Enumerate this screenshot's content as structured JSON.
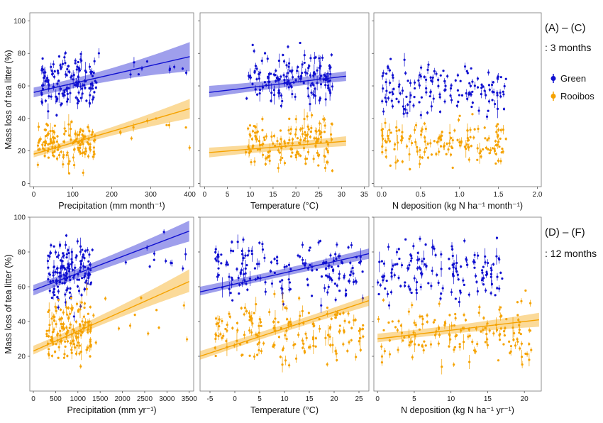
{
  "colors": {
    "green": "#1010d0",
    "rooibos": "#f5a200"
  },
  "legend": {
    "header": "(A) – (C)",
    "subheader": ": 3 months",
    "items": [
      {
        "label": "Green",
        "color": "#1010d0"
      },
      {
        "label": "Rooibos",
        "color": "#f5a200"
      }
    ],
    "header2": "(D) – (F)",
    "subheader2": ": 12 months"
  },
  "chart_data": [
    {
      "type": "scatter",
      "id": "A",
      "xlabel": "Precipitation (mm month⁻¹)",
      "ylabel": "Mass loss of tea litter (%)",
      "xlim": [
        -10,
        410
      ],
      "ylim": [
        -2,
        105
      ],
      "xticks": [
        0,
        100,
        200,
        300,
        400
      ],
      "yticks": [
        0,
        20,
        40,
        60,
        80,
        100
      ],
      "series": [
        {
          "name": "Green",
          "fit": {
            "x": [
              0,
              400
            ],
            "y": [
              56,
              78
            ],
            "band_start": [
              53,
              59
            ],
            "band_end": [
              69,
              87
            ]
          },
          "clusters": [
            {
              "x": [
                20,
                160
              ],
              "y": [
                35,
                90
              ],
              "n": 140
            },
            {
              "x": [
                160,
                400
              ],
              "y": [
                55,
                85
              ],
              "n": 12
            }
          ]
        },
        {
          "name": "Rooibos",
          "fit": {
            "x": [
              0,
              400
            ],
            "y": [
              18,
              46
            ],
            "band_start": [
              16,
              20
            ],
            "band_end": [
              40,
              52
            ]
          },
          "clusters": [
            {
              "x": [
                10,
                160
              ],
              "y": [
                5,
                45
              ],
              "n": 140
            },
            {
              "x": [
                160,
                400
              ],
              "y": [
                15,
                48
              ],
              "n": 10
            }
          ]
        }
      ]
    },
    {
      "type": "scatter",
      "id": "B",
      "xlabel": "Temperature (°C)",
      "ylabel": "",
      "xlim": [
        -1,
        36
      ],
      "ylim": [
        -2,
        105
      ],
      "xticks": [
        0,
        5,
        10,
        15,
        20,
        25,
        30,
        35
      ],
      "yticks": [
        0,
        20,
        40,
        60,
        80,
        100
      ],
      "series": [
        {
          "name": "Green",
          "fit": {
            "x": [
              1,
              31
            ],
            "y": [
              56,
              66
            ],
            "band_start": [
              53,
              60
            ],
            "band_end": [
              63,
              69
            ]
          },
          "clusters": [
            {
              "x": [
                9,
                28
              ],
              "y": [
                38,
                90
              ],
              "n": 150
            }
          ]
        },
        {
          "name": "Rooibos",
          "fit": {
            "x": [
              1,
              31
            ],
            "y": [
              19,
              26
            ],
            "band_start": [
              16,
              22
            ],
            "band_end": [
              23,
              29
            ]
          },
          "clusters": [
            {
              "x": [
                9,
                28
              ],
              "y": [
                3,
                48
              ],
              "n": 150
            }
          ]
        }
      ]
    },
    {
      "type": "scatter",
      "id": "C",
      "xlabel": "N deposition (kg N ha⁻¹ month⁻¹)",
      "ylabel": "",
      "xlim": [
        -0.1,
        2.05
      ],
      "ylim": [
        -2,
        105
      ],
      "xticks": [
        0.0,
        0.5,
        1.0,
        1.5,
        2.0
      ],
      "yticks": [
        0,
        20,
        40,
        60,
        80,
        100
      ],
      "series": [
        {
          "name": "Green",
          "clusters": [
            {
              "x": [
                0.0,
                1.6
              ],
              "y": [
                30,
                85
              ],
              "n": 150
            }
          ]
        },
        {
          "name": "Rooibos",
          "clusters": [
            {
              "x": [
                0.0,
                1.6
              ],
              "y": [
                5,
                45
              ],
              "n": 150
            }
          ]
        }
      ]
    },
    {
      "type": "scatter",
      "id": "D",
      "xlabel": "Precipitation (mm yr⁻¹)",
      "ylabel": "Mass loss of tea litter (%)",
      "xlim": [
        -80,
        3600
      ],
      "ylim": [
        0,
        100
      ],
      "xticks": [
        0,
        500,
        1000,
        1500,
        2000,
        2500,
        3000,
        3500
      ],
      "yticks": [
        20,
        40,
        60,
        80,
        100
      ],
      "series": [
        {
          "name": "Green",
          "fit": {
            "x": [
              0,
              3500
            ],
            "y": [
              58,
              92
            ],
            "band_start": [
              55,
              61
            ],
            "band_end": [
              86,
              98
            ]
          },
          "clusters": [
            {
              "x": [
                300,
                1300
              ],
              "y": [
                42,
                96
              ],
              "n": 150
            },
            {
              "x": [
                1300,
                3500
              ],
              "y": [
                60,
                92
              ],
              "n": 12
            }
          ]
        },
        {
          "name": "Rooibos",
          "fit": {
            "x": [
              0,
              3500
            ],
            "y": [
              23,
              63
            ],
            "band_start": [
              21,
              26
            ],
            "band_end": [
              57,
              70
            ]
          },
          "clusters": [
            {
              "x": [
                300,
                1300
              ],
              "y": [
                8,
                60
              ],
              "n": 150
            },
            {
              "x": [
                1300,
                3500
              ],
              "y": [
                20,
                65
              ],
              "n": 12
            }
          ]
        }
      ]
    },
    {
      "type": "scatter",
      "id": "E",
      "xlabel": "Temperature (°C)",
      "ylabel": "",
      "xlim": [
        -7,
        27
      ],
      "ylim": [
        0,
        100
      ],
      "xticks": [
        -5,
        0,
        5,
        10,
        15,
        20,
        25
      ],
      "yticks": [
        20,
        40,
        60,
        80,
        100
      ],
      "series": [
        {
          "name": "Green",
          "fit": {
            "x": [
              -7,
              27
            ],
            "y": [
              57,
              79
            ],
            "band_start": [
              55,
              60
            ],
            "band_end": [
              76,
              82
            ]
          },
          "clusters": [
            {
              "x": [
                -4,
                26
              ],
              "y": [
                42,
                96
              ],
              "n": 170
            }
          ]
        },
        {
          "name": "Rooibos",
          "fit": {
            "x": [
              -7,
              27
            ],
            "y": [
              20,
              52
            ],
            "band_start": [
              18,
              23
            ],
            "band_end": [
              49,
              55
            ]
          },
          "clusters": [
            {
              "x": [
                -4,
                26
              ],
              "y": [
                8,
                60
              ],
              "n": 170
            }
          ]
        }
      ]
    },
    {
      "type": "scatter",
      "id": "F",
      "xlabel": "N deposition (kg N ha⁻¹ yr⁻¹)",
      "ylabel": "",
      "xlim": [
        -0.5,
        22.3
      ],
      "ylim": [
        0,
        100
      ],
      "xticks": [
        0,
        5,
        10,
        15,
        20
      ],
      "yticks": [
        20,
        40,
        60,
        80,
        100
      ],
      "series": [
        {
          "name": "Green",
          "clusters": [
            {
              "x": [
                0,
                17
              ],
              "y": [
                42,
                96
              ],
              "n": 150
            }
          ]
        },
        {
          "name": "Rooibos",
          "fit": {
            "x": [
              0,
              22
            ],
            "y": [
              30,
              41
            ],
            "band_start": [
              28,
              33
            ],
            "band_end": [
              37,
              45
            ]
          },
          "clusters": [
            {
              "x": [
                0,
                21
              ],
              "y": [
                8,
                60
              ],
              "n": 150
            }
          ]
        }
      ]
    }
  ]
}
